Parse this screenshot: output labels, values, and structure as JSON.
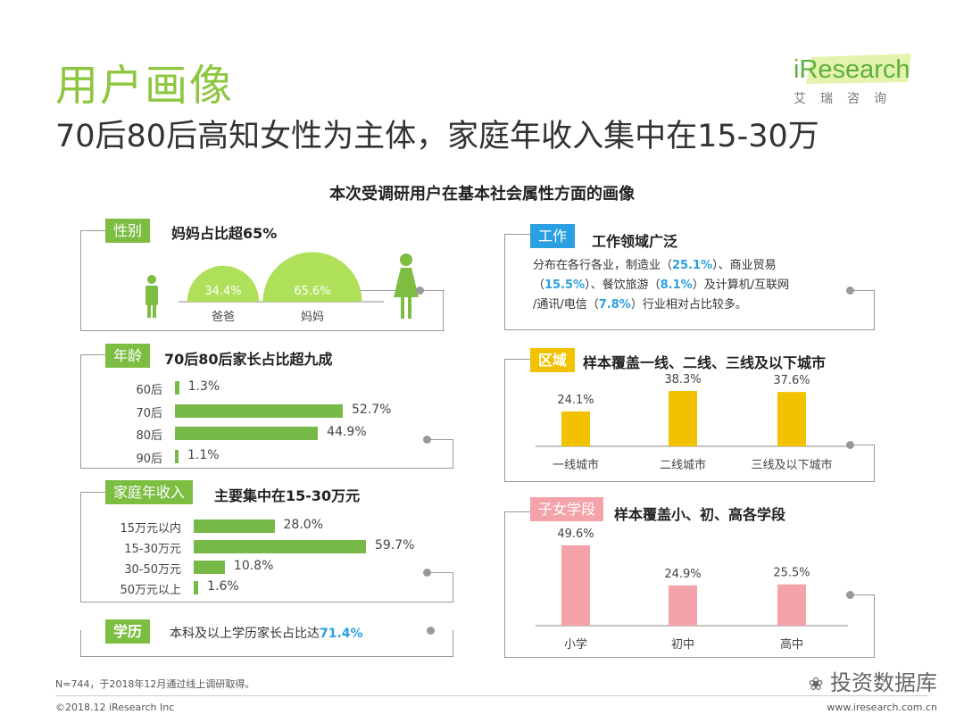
{
  "header": {
    "title": "用户画像",
    "subtitle": "70后80后高知女性为主体，家庭年收入集中在15-30万",
    "logo_text": "iResearch",
    "logo_sub": "艾瑞咨询"
  },
  "chart_title": "本次受调研用户在基本社会属性方面的画像",
  "gender": {
    "tag": "性别",
    "heading": "妈妈占比超65%",
    "labels": [
      "爸爸",
      "妈妈"
    ],
    "value_labels": [
      "34.4%",
      "65.6%"
    ]
  },
  "age": {
    "tag": "年龄",
    "heading": "70后80后家长占比超九成",
    "value_labels": [
      "1.3%",
      "52.7%",
      "44.9%",
      "1.1%"
    ]
  },
  "income": {
    "tag": "家庭年收入",
    "heading": "主要集中在15-30万元",
    "value_labels": [
      "28.0%",
      "59.7%",
      "10.8%",
      "1.6%"
    ]
  },
  "education": {
    "tag": "学历",
    "text": "本科及以上学历家长占比达",
    "highlight": "71.4%"
  },
  "work": {
    "tag": "工作",
    "heading": "工作领域广泛",
    "t1": "分布在各行各业，制造业（",
    "v1": "25.1%",
    "t2": "）、商业贸易",
    "t3": "（",
    "v2": "15.5%",
    "t4": "）、餐饮旅游（",
    "v3": "8.1%",
    "t5": "）及计算机/互联网",
    "t6": "/通讯/电信（",
    "v4": "7.8%",
    "t7": "）行业相对占比较多。"
  },
  "region": {
    "tag": "区域",
    "heading": "样本覆盖一线、二线、三线及以下城市",
    "value_labels": [
      "24.1%",
      "38.3%",
      "37.6%"
    ]
  },
  "school": {
    "tag": "子女学段",
    "heading": "样本覆盖小、初、高各学段",
    "value_labels": [
      "49.6%",
      "24.9%",
      "25.5%"
    ]
  },
  "footer": {
    "note": "N=744，于2018年12月通过线上调研取得。",
    "copyright": "©2018.12 iResearch Inc",
    "website": "www.iresearch.com.cn",
    "wechat": "投资数据库"
  },
  "colors": {
    "green": "#76b947",
    "yellow": "#f2c200",
    "pink": "#f5a3aa",
    "blue": "#2aa0e0"
  },
  "chart_data": [
    {
      "type": "pie",
      "categories": [
        "爸爸",
        "妈妈"
      ],
      "values": [
        34.4,
        65.6
      ]
    },
    {
      "type": "bar",
      "orientation": "horizontal",
      "categories": [
        "60后",
        "70后",
        "80后",
        "90后"
      ],
      "values": [
        1.3,
        52.7,
        44.9,
        1.1
      ]
    },
    {
      "type": "bar",
      "orientation": "horizontal",
      "categories": [
        "15万元以内",
        "15-30万元",
        "30-50万元",
        "50万元以上"
      ],
      "values": [
        28.0,
        59.7,
        10.8,
        1.6
      ]
    },
    {
      "type": "bar",
      "categories": [
        "一线城市",
        "二线城市",
        "三线及以下城市"
      ],
      "values": [
        24.1,
        38.3,
        37.6
      ]
    },
    {
      "type": "bar",
      "categories": [
        "小学",
        "初中",
        "高中"
      ],
      "values": [
        49.6,
        24.9,
        25.5
      ]
    }
  ]
}
